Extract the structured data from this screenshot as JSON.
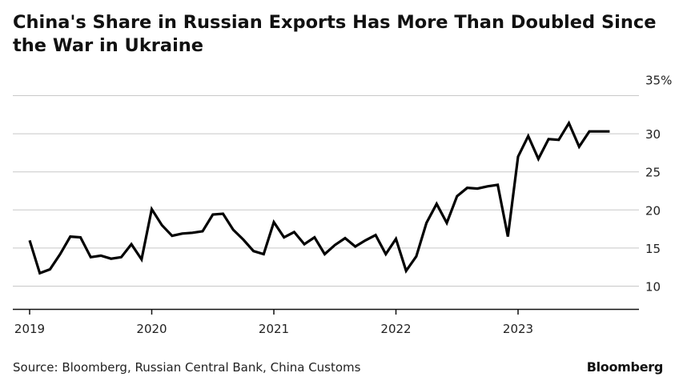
{
  "chart_data": {
    "type": "line",
    "title": "China's Share in Russian Exports Has More Than Doubled Since the War in Ukraine",
    "unit_suffix": "%",
    "ylim": [
      7,
      36
    ],
    "y_ticks": [
      10,
      15,
      20,
      25,
      30,
      35
    ],
    "y_tick_labels": [
      "10",
      "15",
      "20",
      "25",
      "30",
      "35%"
    ],
    "x_tick_labels": [
      "2019",
      "2020",
      "2021",
      "2022",
      "2023"
    ],
    "grid": true,
    "series": [
      {
        "x": [
          "2019-01",
          "2019-02",
          "2019-03",
          "2019-04",
          "2019-05",
          "2019-06",
          "2019-07",
          "2019-08",
          "2019-09",
          "2019-10",
          "2019-11",
          "2019-12",
          "2020-01",
          "2020-02",
          "2020-03",
          "2020-04",
          "2020-05",
          "2020-06",
          "2020-07",
          "2020-08",
          "2020-09",
          "2020-10",
          "2020-11",
          "2020-12",
          "2021-01",
          "2021-02",
          "2021-03",
          "2021-04",
          "2021-05",
          "2021-06",
          "2021-07",
          "2021-08",
          "2021-09",
          "2021-10",
          "2021-11",
          "2021-12",
          "2022-01",
          "2022-02",
          "2022-03",
          "2022-04",
          "2022-05",
          "2022-06",
          "2022-07",
          "2022-08",
          "2022-09",
          "2022-10",
          "2022-11",
          "2022-12",
          "2023-01",
          "2023-02",
          "2023-03",
          "2023-04",
          "2023-05",
          "2023-06",
          "2023-07",
          "2023-08",
          "2023-09",
          "2023-10"
        ],
        "values": [
          16.0,
          11.7,
          12.2,
          14.2,
          16.5,
          16.4,
          13.8,
          14.0,
          13.6,
          13.8,
          15.5,
          13.5,
          20.1,
          18.0,
          16.6,
          16.9,
          17.0,
          17.2,
          19.4,
          19.5,
          17.4,
          16.1,
          14.6,
          14.2,
          18.4,
          16.4,
          17.1,
          15.5,
          16.4,
          14.2,
          15.4,
          16.3,
          15.2,
          16.0,
          16.7,
          14.2,
          16.2,
          12.0,
          13.9,
          18.3,
          20.8,
          18.3,
          21.8,
          22.9,
          22.8,
          23.1,
          23.3,
          16.5,
          27.0,
          29.7,
          26.7,
          29.3,
          29.2,
          31.4,
          28.3,
          30.3,
          30.3,
          30.3
        ]
      }
    ]
  },
  "source": "Source: Bloomberg, Russian Central Bank, China Customs",
  "brand": "Bloomberg",
  "colors": {
    "line": "#000000",
    "grid": "#c8c8c8",
    "axis": "#111111",
    "text": "#222222"
  }
}
